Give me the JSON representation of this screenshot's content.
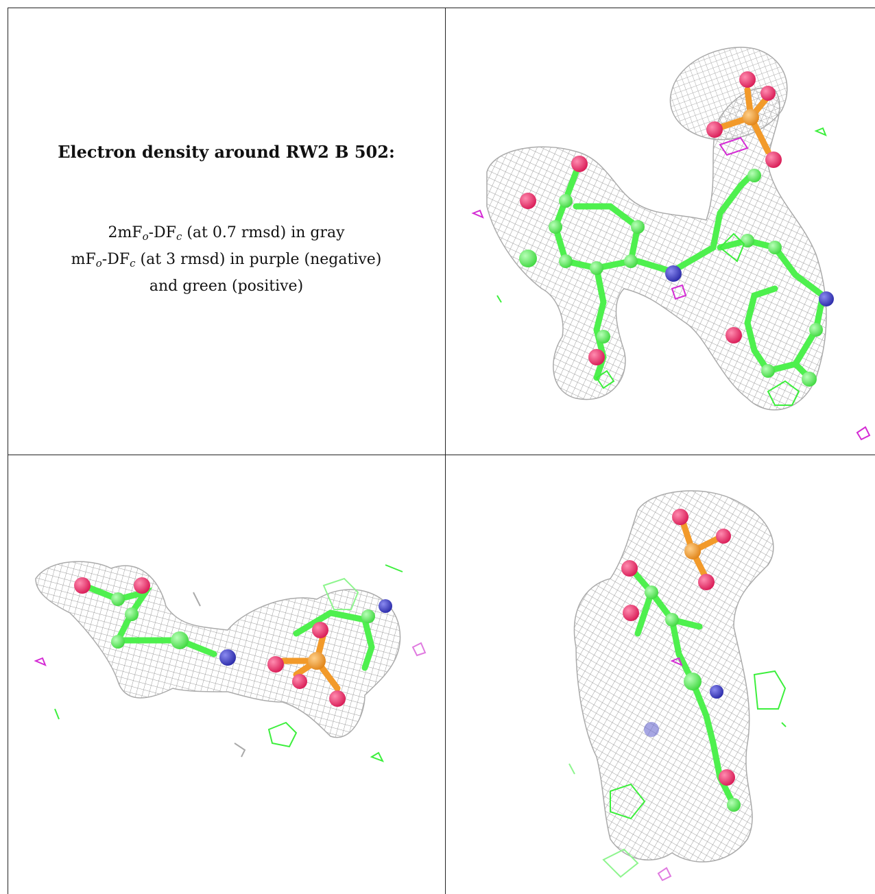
{
  "caption": {
    "title": "Electron density around RW2 B 502:",
    "line1_prefix": "2mF",
    "line1_sub1": "o",
    "line1_mid": "-DF",
    "line1_sub2": "c",
    "line1_suffix": " (at 0.7 rmsd) in gray",
    "line2_prefix": "mF",
    "line2_sub1": "o",
    "line2_mid": "-DF",
    "line2_sub2": "c",
    "line2_suffix": " (at 3 rmsd) in purple (negative)",
    "line3": "and green (positive)"
  },
  "colors": {
    "mesh_gray": "#9a9a9a",
    "carbon_green": "#4ef04e",
    "oxygen_red": "#e8215f",
    "nitrogen_blue": "#3c3cc8",
    "phosphorus_orange": "#f29a2a",
    "negative_purple": "#d42bd4",
    "positive_green": "#3cef3c"
  },
  "panels": [
    {
      "name": "view-top-right"
    },
    {
      "name": "view-bottom-left"
    },
    {
      "name": "view-bottom-right"
    }
  ]
}
